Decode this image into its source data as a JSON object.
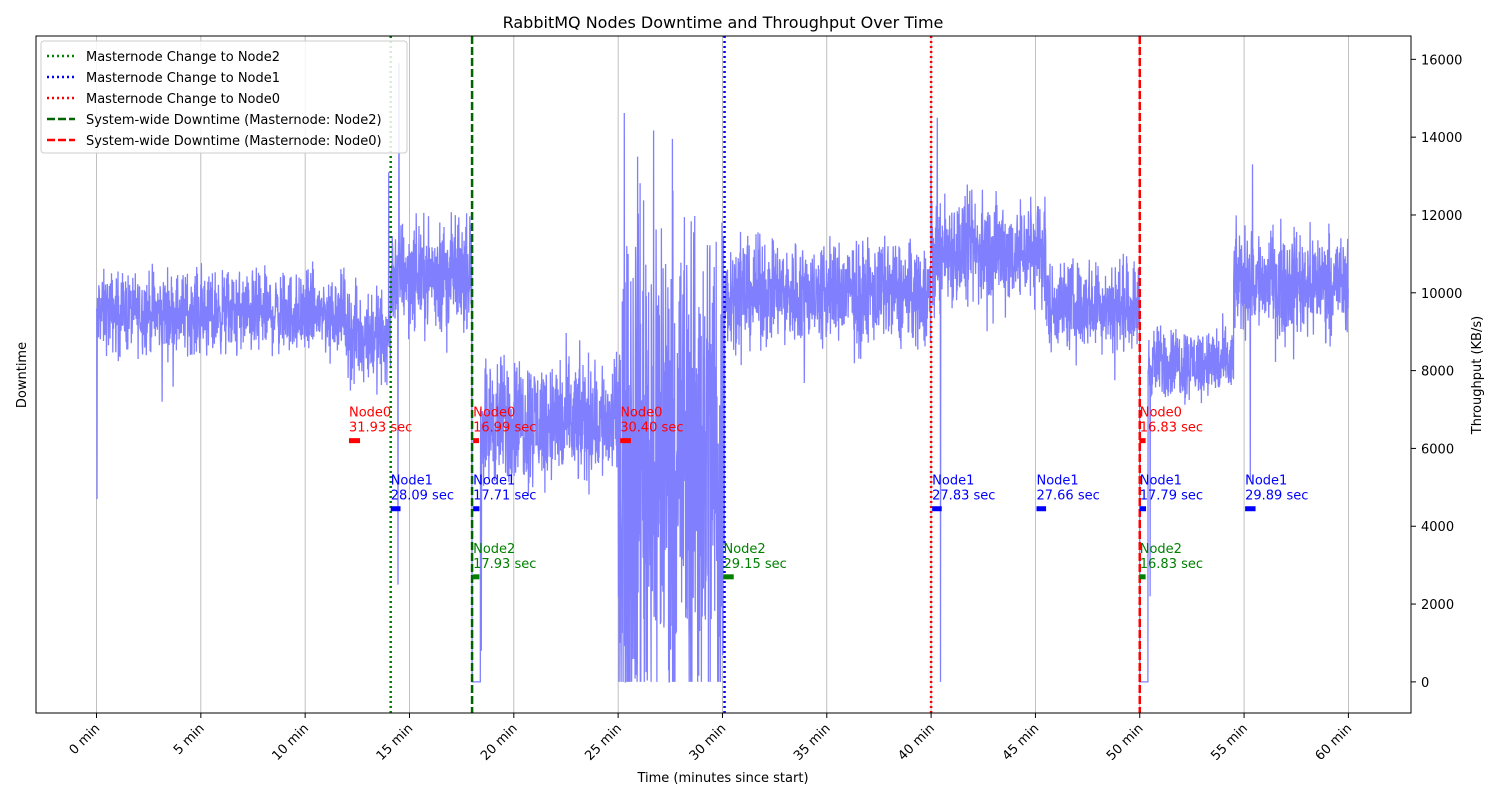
{
  "chart_data": {
    "type": "line",
    "title": "RabbitMQ Nodes Downtime and Throughput Over Time",
    "xlabel": "Time (minutes since start)",
    "ylabel_left": "Downtime",
    "ylabel_right": "Throughput (KB/s)",
    "xlim": [
      -2.9,
      63.0
    ],
    "ylim_right": [
      -800,
      16600
    ],
    "x_ticks": [
      0,
      5,
      10,
      15,
      20,
      25,
      30,
      35,
      40,
      45,
      50,
      55,
      60
    ],
    "x_tick_labels": [
      "0 min",
      "5 min",
      "10 min",
      "15 min",
      "20 min",
      "25 min",
      "30 min",
      "35 min",
      "40 min",
      "45 min",
      "50 min",
      "55 min",
      "60 min"
    ],
    "y_ticks_right": [
      0,
      2000,
      4000,
      6000,
      8000,
      10000,
      12000,
      14000,
      16000
    ],
    "y_tick_labels_right": [
      "0",
      "2000",
      "4000",
      "6000",
      "8000",
      "10000",
      "12000",
      "14000",
      "16000"
    ],
    "grid": "vertical",
    "legend_position": "top-left",
    "legend": [
      {
        "label": "Masternode Change to Node2",
        "color": "#008000",
        "style": "dotted"
      },
      {
        "label": "Masternode Change to Node1",
        "color": "#0000ff",
        "style": "dotted"
      },
      {
        "label": "Masternode Change to Node0",
        "color": "#ff0000",
        "style": "dotted"
      },
      {
        "label": "System-wide Downtime (Masternode: Node2)",
        "color": "#006400",
        "style": "dashed"
      },
      {
        "label": "System-wide Downtime (Masternode: Node0)",
        "color": "#ff0000",
        "style": "dashed"
      }
    ],
    "vertical_lines": [
      {
        "x": 14.1,
        "color": "#008000",
        "style": "dotted"
      },
      {
        "x": 30.1,
        "color": "#0000ff",
        "style": "dotted"
      },
      {
        "x": 40.0,
        "color": "#ff0000",
        "style": "dotted"
      },
      {
        "x": 18.0,
        "color": "#006400",
        "style": "dashed"
      },
      {
        "x": 50.0,
        "color": "#ff0000",
        "style": "dashed"
      }
    ],
    "downtime_rows": [
      {
        "node": "Node0",
        "color": "#ff0000",
        "level": 6200
      },
      {
        "node": "Node1",
        "color": "#0000ff",
        "level": 4450
      },
      {
        "node": "Node2",
        "color": "#008000",
        "level": 2700
      }
    ],
    "downtime_events": [
      {
        "node": "Node0",
        "start": 12.1,
        "duration_label": "31.93 sec",
        "width_min": 0.53
      },
      {
        "node": "Node0",
        "start": 18.05,
        "duration_label": "16.99 sec",
        "width_min": 0.28
      },
      {
        "node": "Node0",
        "start": 25.1,
        "duration_label": "30.40 sec",
        "width_min": 0.51
      },
      {
        "node": "Node0",
        "start": 50.0,
        "duration_label": "16.83 sec",
        "width_min": 0.28
      },
      {
        "node": "Node1",
        "start": 14.1,
        "duration_label": "28.09 sec",
        "width_min": 0.47
      },
      {
        "node": "Node1",
        "start": 18.05,
        "duration_label": "17.71 sec",
        "width_min": 0.3
      },
      {
        "node": "Node1",
        "start": 40.05,
        "duration_label": "27.83 sec",
        "width_min": 0.46
      },
      {
        "node": "Node1",
        "start": 45.05,
        "duration_label": "27.66 sec",
        "width_min": 0.46
      },
      {
        "node": "Node1",
        "start": 50.0,
        "duration_label": "17.79 sec",
        "width_min": 0.3
      },
      {
        "node": "Node1",
        "start": 55.05,
        "duration_label": "29.89 sec",
        "width_min": 0.5
      },
      {
        "node": "Node2",
        "start": 18.05,
        "duration_label": "17.93 sec",
        "width_min": 0.3
      },
      {
        "node": "Node2",
        "start": 30.05,
        "duration_label": "29.15 sec",
        "width_min": 0.49
      },
      {
        "node": "Node2",
        "start": 50.0,
        "duration_label": "16.83 sec",
        "width_min": 0.28
      }
    ],
    "throughput_series": {
      "color": "#8080ff",
      "segments": [
        {
          "from": 0,
          "to": 12,
          "mean": 9500,
          "noise": 500
        },
        {
          "from": 12,
          "to": 14.1,
          "mean": 8900,
          "noise": 600
        },
        {
          "from": 14.1,
          "to": 18.0,
          "mean": 10500,
          "noise": 650
        },
        {
          "from": 18.0,
          "to": 18.4,
          "mean": 0,
          "noise": 0
        },
        {
          "from": 18.4,
          "to": 25.0,
          "mean": 6700,
          "noise": 800
        },
        {
          "from": 25.0,
          "to": 30.1,
          "mean": 6000,
          "noise": 3500
        },
        {
          "from": 30.1,
          "to": 40.0,
          "mean": 10000,
          "noise": 650
        },
        {
          "from": 40.0,
          "to": 45.5,
          "mean": 11100,
          "noise": 700
        },
        {
          "from": 45.5,
          "to": 50.0,
          "mean": 9700,
          "noise": 550
        },
        {
          "from": 50.0,
          "to": 50.4,
          "mean": 0,
          "noise": 0
        },
        {
          "from": 50.4,
          "to": 54.5,
          "mean": 8200,
          "noise": 450
        },
        {
          "from": 54.5,
          "to": 60.0,
          "mean": 10300,
          "noise": 650
        }
      ],
      "spikes": [
        {
          "x": 0.02,
          "y": 4700
        },
        {
          "x": 3.15,
          "y": 7200
        },
        {
          "x": 14.0,
          "y": 13100
        },
        {
          "x": 14.5,
          "y": 15900
        },
        {
          "x": 14.45,
          "y": 2500
        },
        {
          "x": 18.45,
          "y": 800
        },
        {
          "x": 29.9,
          "y": 0
        },
        {
          "x": 40.0,
          "y": 13300
        },
        {
          "x": 40.3,
          "y": 14500
        },
        {
          "x": 40.45,
          "y": 0
        },
        {
          "x": 50.5,
          "y": 2200
        },
        {
          "x": 55.4,
          "y": 13300
        },
        {
          "x": 55.3,
          "y": 5200
        }
      ]
    }
  }
}
